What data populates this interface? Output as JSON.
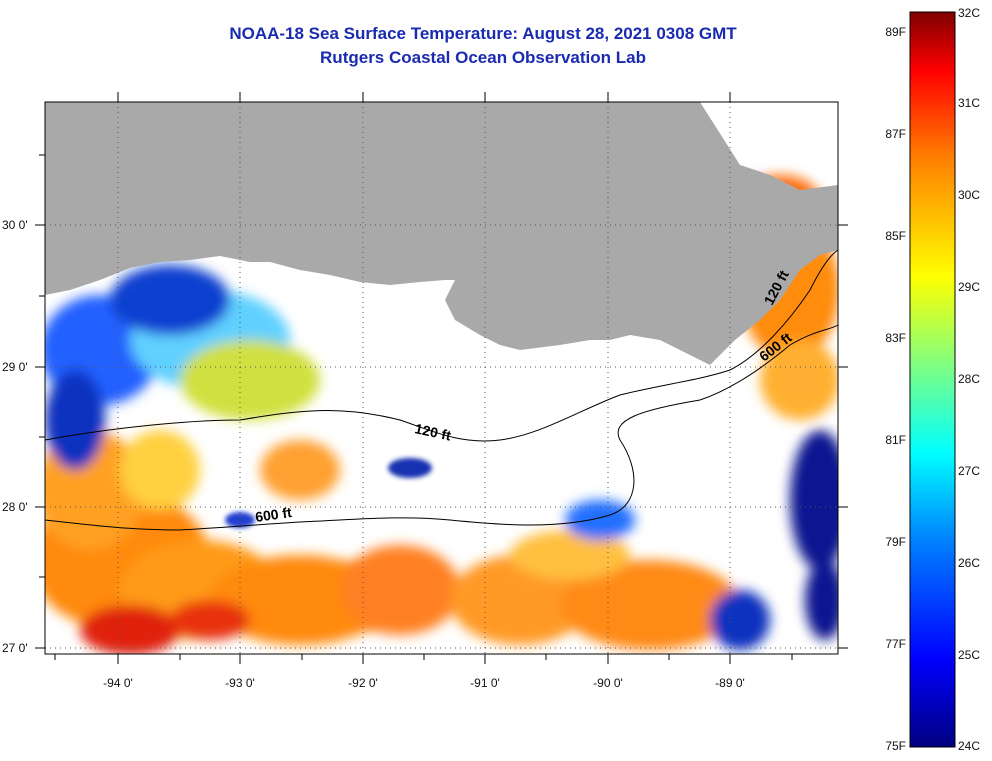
{
  "title": {
    "line1": "NOAA-18 Sea Surface Temperature:  August 28, 2021 0308 GMT",
    "line2": "Rutgers Coastal Ocean Observation Lab"
  },
  "map": {
    "lat_labels": [
      "30 0'",
      "29 0'",
      "28 0'",
      "27 0'"
    ],
    "lon_labels": [
      "-94 0'",
      "-93 0'",
      "-92 0'",
      "-91 0'",
      "-90 0'",
      "-89 0'"
    ],
    "contours": [
      "120 ft",
      "600 ft",
      "120 ft",
      "600 ft"
    ],
    "colors": {
      "land": "#a9a9a9",
      "no_data": "#ffffff"
    }
  },
  "colorbar": {
    "fahrenheit_labels": [
      "89F",
      "87F",
      "85F",
      "83F",
      "81F",
      "79F",
      "77F",
      "75F"
    ],
    "celsius_labels": [
      "32C",
      "31C",
      "30C",
      "29C",
      "28C",
      "27C",
      "26C",
      "25C",
      "24C"
    ],
    "colors": [
      "#000080",
      "#0000ff",
      "#0080ff",
      "#00ffff",
      "#80ff80",
      "#ffff00",
      "#ff8000",
      "#ff0000",
      "#800000"
    ]
  }
}
